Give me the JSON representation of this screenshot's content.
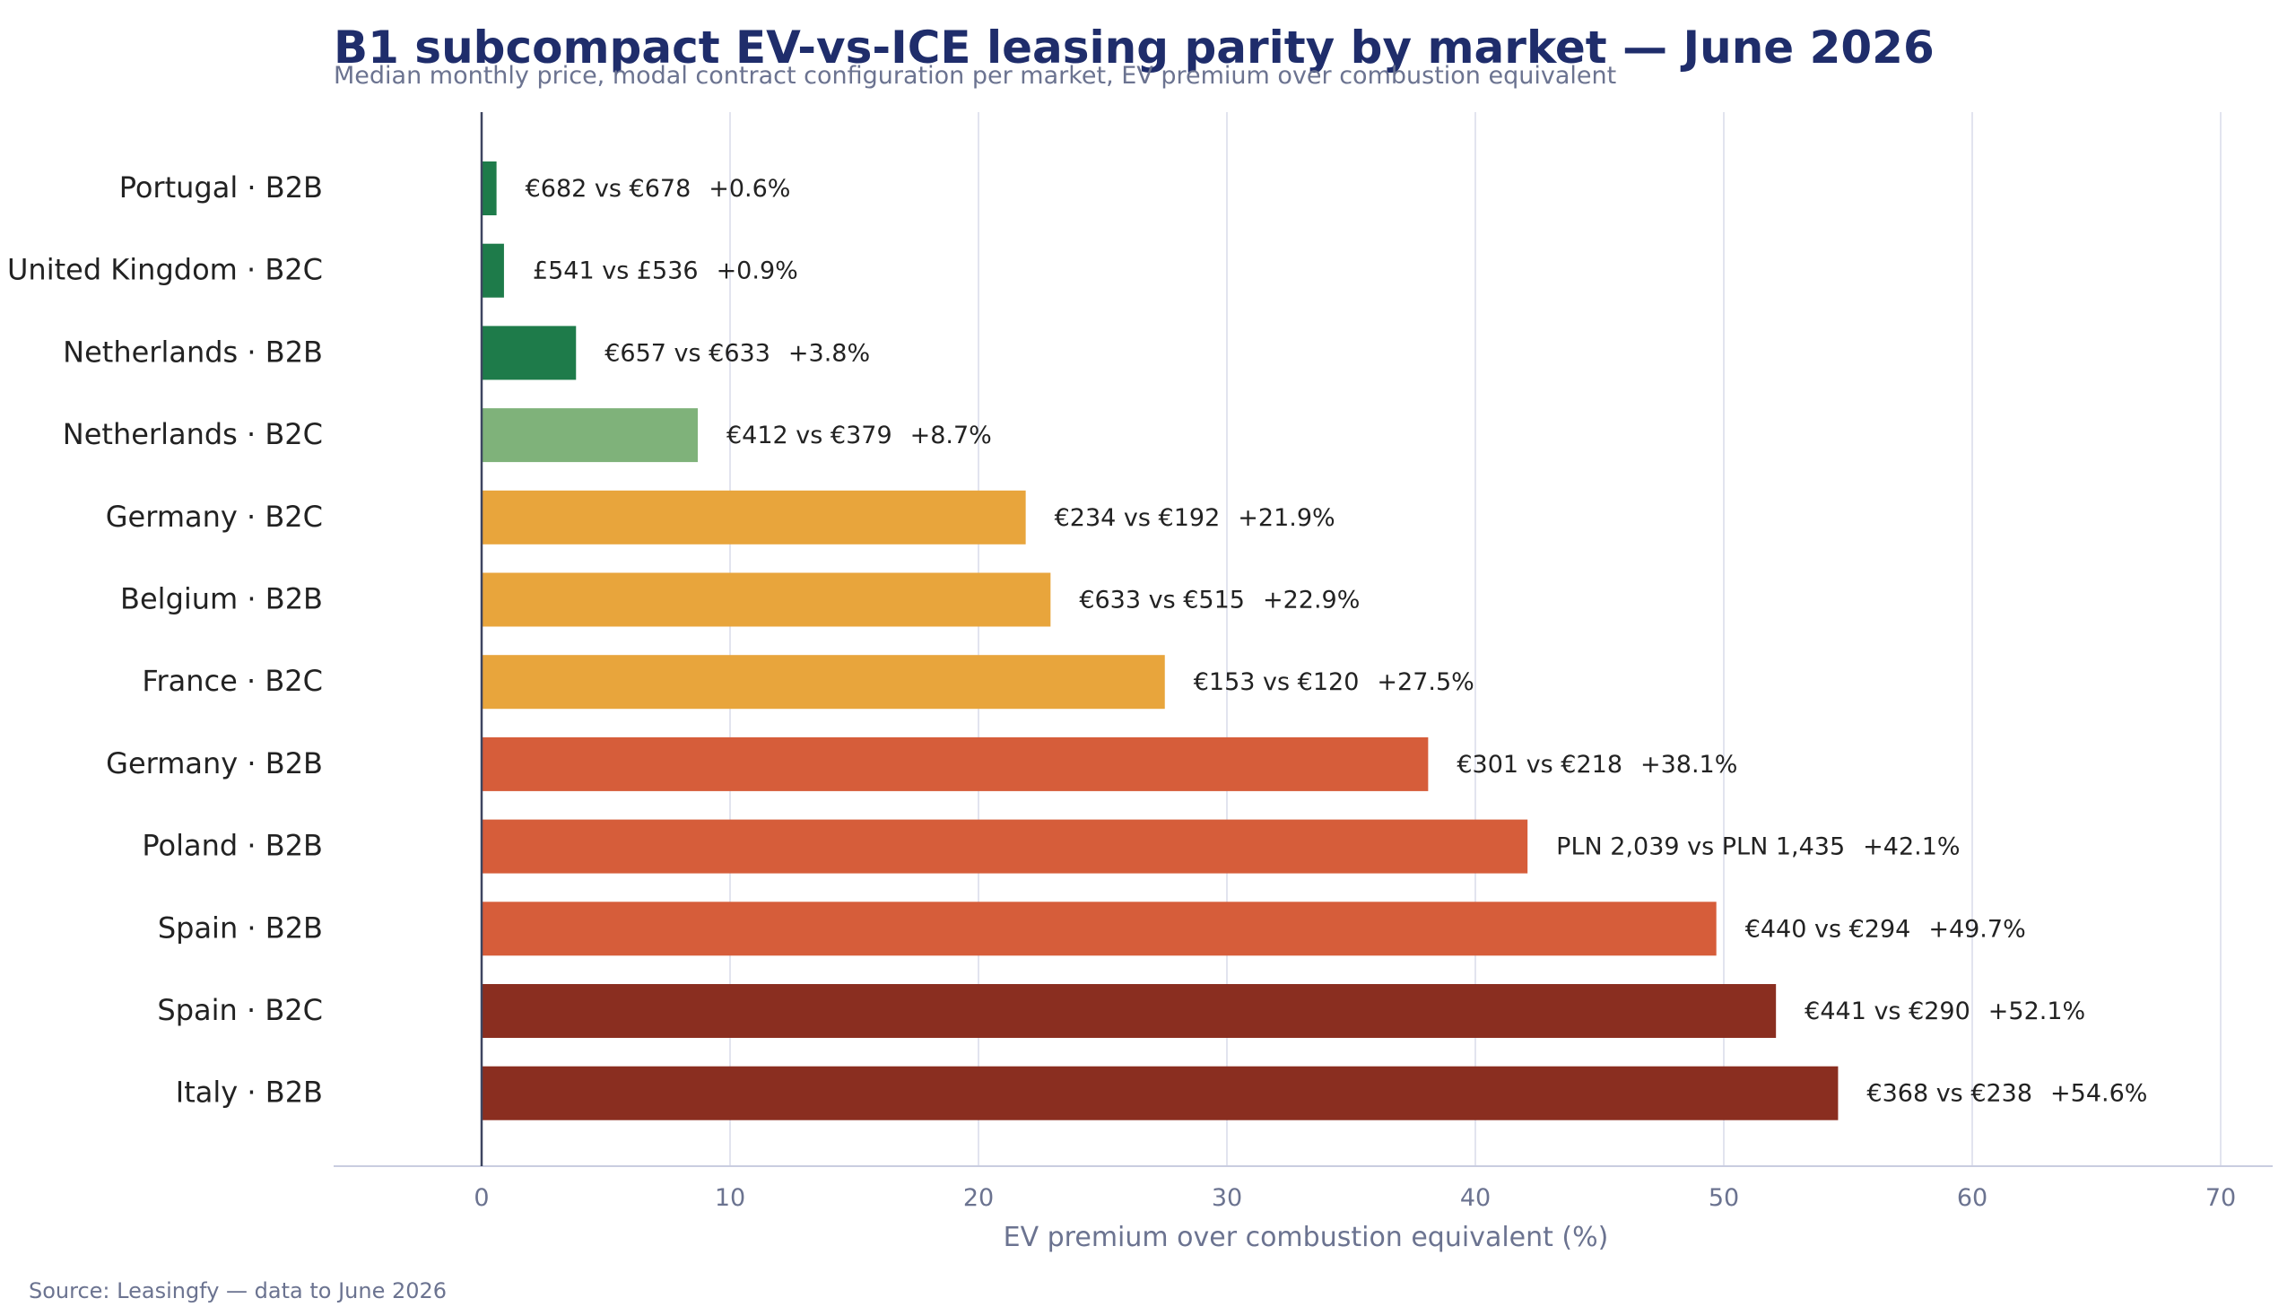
{
  "chart_data": {
    "type": "bar",
    "orientation": "horizontal",
    "title": "B1 subcompact EV-vs-ICE leasing parity by market — June 2026",
    "subtitle": "Median monthly price, modal contract configuration per market, EV premium over combustion equivalent",
    "xlabel": "EV premium over combustion equivalent (%)",
    "ylabel": "",
    "xlim": [
      -6,
      72
    ],
    "xticks": [
      0,
      10,
      20,
      30,
      40,
      50,
      60,
      70
    ],
    "grid": true,
    "source": "Source: Leasingfy — data to June 2026",
    "bars": [
      {
        "category": "Portugal · B2B",
        "value": 0.6,
        "label": "€682 vs €678",
        "pct": "+0.6%",
        "color": "#1e7b4a"
      },
      {
        "category": "United Kingdom · B2C",
        "value": 0.9,
        "label": "£541 vs £536",
        "pct": "+0.9%",
        "color": "#1e7b4a"
      },
      {
        "category": "Netherlands · B2B",
        "value": 3.8,
        "label": "€657 vs €633",
        "pct": "+3.8%",
        "color": "#1e7b4a"
      },
      {
        "category": "Netherlands · B2C",
        "value": 8.7,
        "label": "€412 vs €379",
        "pct": "+8.7%",
        "color": "#7fb27a"
      },
      {
        "category": "Germany · B2C",
        "value": 21.9,
        "label": "€234 vs €192",
        "pct": "+21.9%",
        "color": "#e8a53c"
      },
      {
        "category": "Belgium · B2B",
        "value": 22.9,
        "label": "€633 vs €515",
        "pct": "+22.9%",
        "color": "#e8a53c"
      },
      {
        "category": "France · B2C",
        "value": 27.5,
        "label": "€153 vs €120",
        "pct": "+27.5%",
        "color": "#e8a53c"
      },
      {
        "category": "Germany · B2B",
        "value": 38.1,
        "label": "€301 vs €218",
        "pct": "+38.1%",
        "color": "#d65d3a"
      },
      {
        "category": "Poland · B2B",
        "value": 42.1,
        "label": "PLN 2,039 vs PLN 1,435",
        "pct": "+42.1%",
        "color": "#d65d3a"
      },
      {
        "category": "Spain · B2B",
        "value": 49.7,
        "label": "€440 vs €294",
        "pct": "+49.7%",
        "color": "#d65d3a"
      },
      {
        "category": "Spain · B2C",
        "value": 52.1,
        "label": "€441 vs €290",
        "pct": "+52.1%",
        "color": "#8a2e20"
      },
      {
        "category": "Italy · B2B",
        "value": 54.6,
        "label": "€368 vs €238",
        "pct": "+54.6%",
        "color": "#8a2e20"
      }
    ]
  }
}
